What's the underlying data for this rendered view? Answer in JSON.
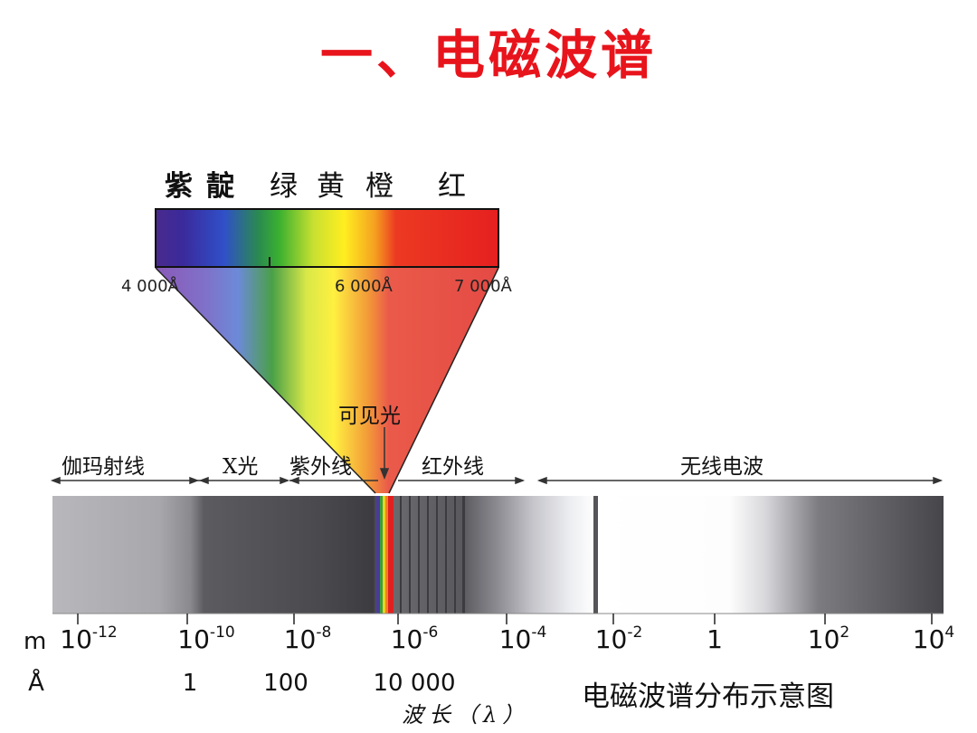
{
  "title": "一、电磁波谱",
  "colors": {
    "violet": "紫",
    "indigo": "靛",
    "green": "绿",
    "yellow": "黄",
    "orange": "橙",
    "red": "红"
  },
  "visible_wavelengths": [
    "4 000Å",
    "6 000Å",
    "7 000Å"
  ],
  "visible_light_label": "可见光",
  "bands": [
    "伽玛射线",
    "X光",
    "紫外线",
    "红外线",
    "无线电波"
  ],
  "meter_unit": "m",
  "meter_ticks": [
    {
      "base": "10",
      "exp": "-12"
    },
    {
      "base": "10",
      "exp": "-10"
    },
    {
      "base": "10",
      "exp": "-8"
    },
    {
      "base": "10",
      "exp": "-6"
    },
    {
      "base": "10",
      "exp": "-4"
    },
    {
      "base": "10",
      "exp": "-2"
    },
    {
      "base": "1",
      "exp": ""
    },
    {
      "base": "10",
      "exp": "2"
    },
    {
      "base": "10",
      "exp": "4"
    }
  ],
  "angstrom_unit": "Å",
  "angstrom_ticks": [
    "1",
    "100",
    "10 000"
  ],
  "axis_label": "波长（λ）",
  "caption": "电磁波谱分布示意图"
}
